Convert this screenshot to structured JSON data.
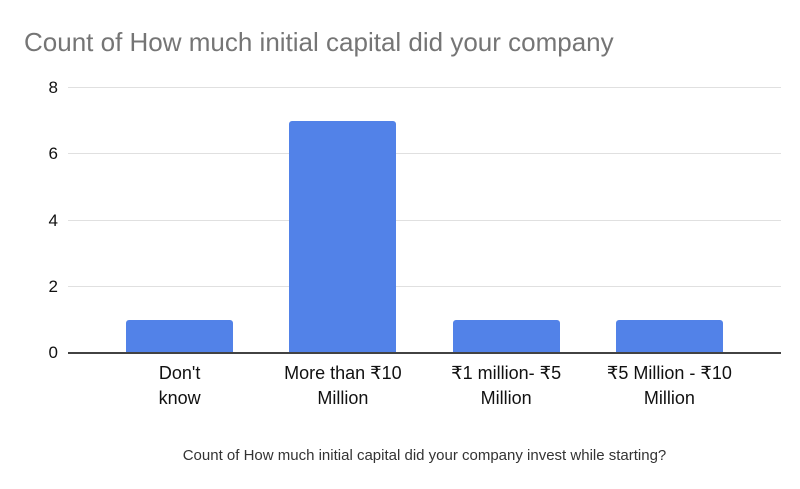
{
  "chart_data": {
    "type": "bar",
    "title": "Count of How much initial capital did your company",
    "xlabel": "Count of How much initial capital did your company invest while starting?",
    "ylabel": "",
    "categories": [
      "Don't know",
      "More than ₹10 Million",
      "₹1 million- ₹5 Million",
      "₹5 Million - ₹10 Million"
    ],
    "category_display": [
      "Don't\nknow",
      "More than ₹10\nMillion",
      "₹1 million- ₹5\nMillion",
      "₹5 Million - ₹10\nMillion"
    ],
    "values": [
      1,
      7,
      1,
      1
    ],
    "ylim": [
      0,
      8
    ],
    "yticks": [
      0,
      2,
      4,
      6,
      8
    ],
    "grid": true,
    "legend": "none",
    "colors": {
      "bar": "#5282e8",
      "title": "#757575",
      "axis_text": "#111111",
      "axis_title": "#333333",
      "gridline": "#e0e0e0",
      "baseline": "#424242",
      "background": "#ffffff"
    }
  }
}
